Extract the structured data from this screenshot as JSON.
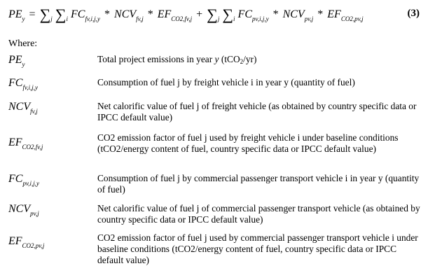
{
  "equation": {
    "lhs": "PE",
    "lhs_sub": "y",
    "t1_main": "FC",
    "t1_sub": "fv,i,j,y",
    "t2_main": "NCV",
    "t2_sub": "fv,j",
    "t3_main": "EF",
    "t3_sub": "CO2,fv,j",
    "t4_main": "FC",
    "t4_sub": "pv,i,j,y",
    "t5_main": "NCV",
    "t5_sub": "pv,j",
    "t6_main": "EF",
    "t6_sub": "CO2,pv,j",
    "sum_sub_j": "j",
    "sum_sub_i": "i",
    "number": "(3)"
  },
  "where_label": "Where:",
  "definitions": [
    {
      "sym": "PE",
      "sub": "y",
      "l1": "Total project emissions in year ",
      "l1b": "y",
      "l1c": " (tCO",
      "l1d": "2",
      "l1e": "/yr)"
    },
    {
      "sym": "FC",
      "sub": "fv,i,j,y",
      "text": "Consumption of fuel j by freight vehicle i in year y (quantity of fuel)"
    },
    {
      "sym": "NCV",
      "sub": "fv,j",
      "text": "Net calorific value of fuel j of freight vehicle (as obtained by country specific data or IPCC default value)"
    },
    {
      "sym": "EF",
      "sub": "CO2,fv,j",
      "text": "CO2 emission factor of fuel j used by freight vehicle i under baseline conditions (tCO2/energy content of fuel, country specific data or IPCC default value)"
    },
    {
      "sym": "FC",
      "sub": "pv,i,j,y",
      "text": "Consumption of fuel j by commercial passenger transport vehicle i in year y (quantity of fuel)"
    },
    {
      "sym": "NCV",
      "sub": "pv,j",
      "text": "Net calorific value of fuel j of commercial passenger transport vehicle (as obtained by country specific data or IPCC default value)"
    },
    {
      "sym": "EF",
      "sub": "CO2,pv,j",
      "text": "CO2 emission factor of fuel j used by commercial passenger transport vehicle i under baseline conditions (tCO2/energy content of fuel, country specific data or IPCC default value)"
    }
  ]
}
